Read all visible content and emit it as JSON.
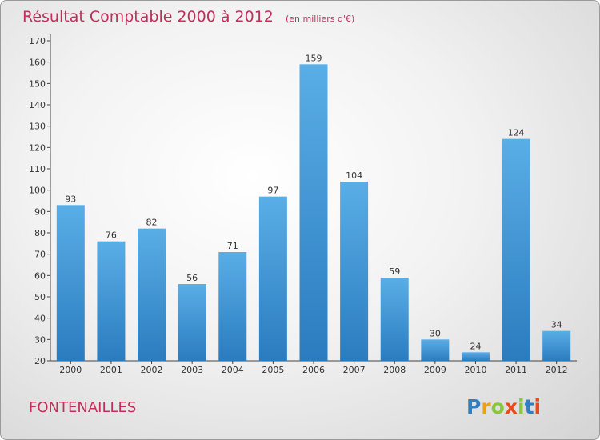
{
  "chart_data": {
    "type": "bar",
    "title": "Résultat Comptable 2000 à 2012",
    "subtitle": "(en milliers d'€)",
    "categories": [
      "2000",
      "2001",
      "2002",
      "2003",
      "2004",
      "2005",
      "2006",
      "2007",
      "2008",
      "2009",
      "2010",
      "2011",
      "2012"
    ],
    "values": [
      93,
      76,
      82,
      56,
      71,
      97,
      159,
      104,
      59,
      30,
      24,
      124,
      34
    ],
    "ylim": [
      20,
      170
    ],
    "yticks": [
      20,
      30,
      40,
      50,
      60,
      70,
      80,
      90,
      100,
      110,
      120,
      130,
      140,
      150,
      160,
      170
    ],
    "xlabel": "",
    "ylabel": "",
    "grid": false,
    "bar_color_top": "#5aaee6",
    "bar_color_bottom": "#2a7cbf"
  },
  "place_name": "FONTENAILLES",
  "brand": {
    "letters": [
      "P",
      "r",
      "o",
      "x",
      "i",
      "t",
      "i"
    ],
    "colors": [
      "#2f7fc1",
      "#e8a21a",
      "#8cc63f",
      "#e8491d",
      "#8cc63f",
      "#2f7fc1",
      "#e8491d"
    ]
  }
}
